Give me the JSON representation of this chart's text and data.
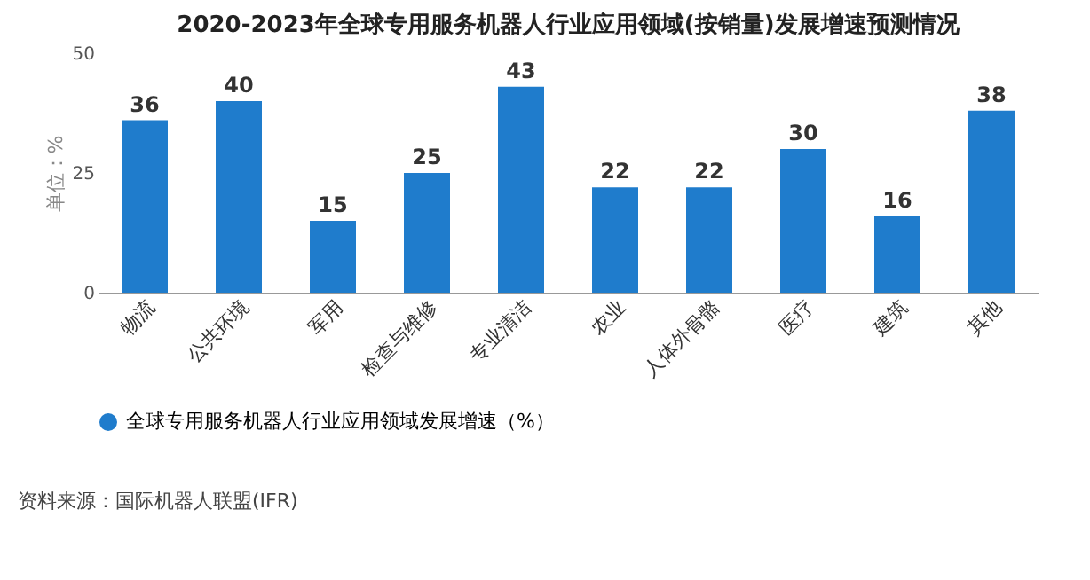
{
  "chart_data": {
    "type": "bar",
    "title": "2020-2023年全球专用服务机器人行业应用领域(按销量)发展增速预测情况",
    "ylabel": "单位：%",
    "categories": [
      "物流",
      "公共环境",
      "军用",
      "检查与维修",
      "专业清洁",
      "农业",
      "人体外骨骼",
      "医疗",
      "建筑",
      "其他"
    ],
    "series": [
      {
        "name": "全球专用服务机器人行业应用领域发展增速（%）",
        "color": "#1f7ccc",
        "values": [
          36,
          40,
          15,
          25,
          43,
          22,
          22,
          30,
          16,
          38
        ]
      }
    ],
    "ylim": [
      0,
      50
    ],
    "yticks": [
      0,
      25,
      50
    ],
    "data_labels": true,
    "grid": false,
    "legend": "bottom",
    "annotations": [
      "资料来源：国际机器人联盟(IFR)"
    ]
  }
}
